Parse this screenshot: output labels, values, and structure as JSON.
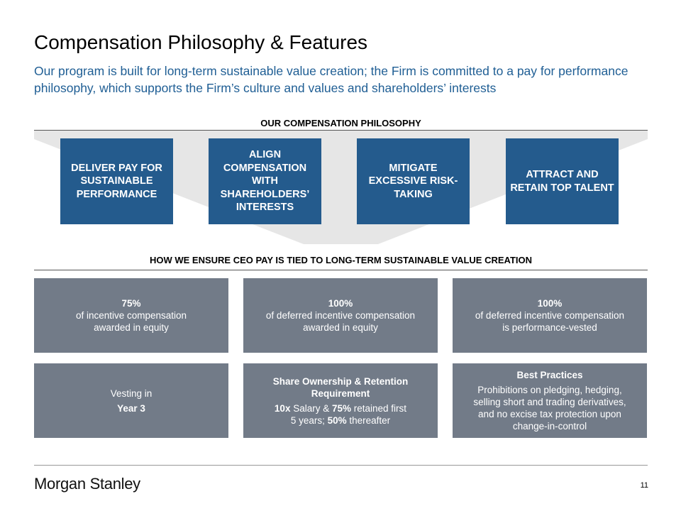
{
  "title": "Compensation Philosophy & Features",
  "subtitle": "Our program is built for long-term sustainable value creation; the Firm is committed to a pay for performance philosophy, which supports the Firm’s culture and values and shareholders’ interests",
  "philosophy": {
    "heading": "OUR COMPENSATION PHILOSOPHY",
    "items": [
      {
        "label": "DELIVER PAY FOR SUSTAINABLE PERFORMANCE"
      },
      {
        "label": "ALIGN COMPENSATION WITH SHAREHOLDERS’ INTERESTS"
      },
      {
        "label": "MITIGATE EXCESSIVE RISK-TAKING"
      },
      {
        "label": "ATTRACT AND RETAIN TOP TALENT"
      }
    ]
  },
  "ensure": {
    "heading": "HOW WE ENSURE CEO PAY IS TIED TO LONG-TERM SUSTAINABLE VALUE CREATION",
    "row1": [
      {
        "value": "75%",
        "line1": "of incentive compensation",
        "line2": "awarded in equity"
      },
      {
        "value": "100%",
        "line1": "of deferred incentive compensation",
        "line2": "awarded in equity"
      },
      {
        "value": "100%",
        "line1": "of deferred incentive compensation",
        "line2": "is performance-vested"
      }
    ],
    "vesting": {
      "line1": "Vesting in",
      "line2": "Year 3"
    },
    "ownership": {
      "title": "Share Ownership & Retention Requirement",
      "mult": "10x",
      "salary_text": " Salary & ",
      "retained_pct": "75%",
      "retained_text": " retained first",
      "years_text": "5 years; ",
      "after_pct": "50%",
      "after_text": " thereafter"
    },
    "best_practices": {
      "title": "Best Practices",
      "text": "Prohibitions on pledging, hedging, selling short and trading derivatives, and no excise tax protection upon change-in-control"
    }
  },
  "footer": {
    "logo": "Morgan Stanley",
    "page": "11"
  },
  "colors": {
    "accent": "#245b8d",
    "subtitle": "#1f5e94",
    "feature_box": "#727b88",
    "funnel": "#e6e6e6"
  }
}
